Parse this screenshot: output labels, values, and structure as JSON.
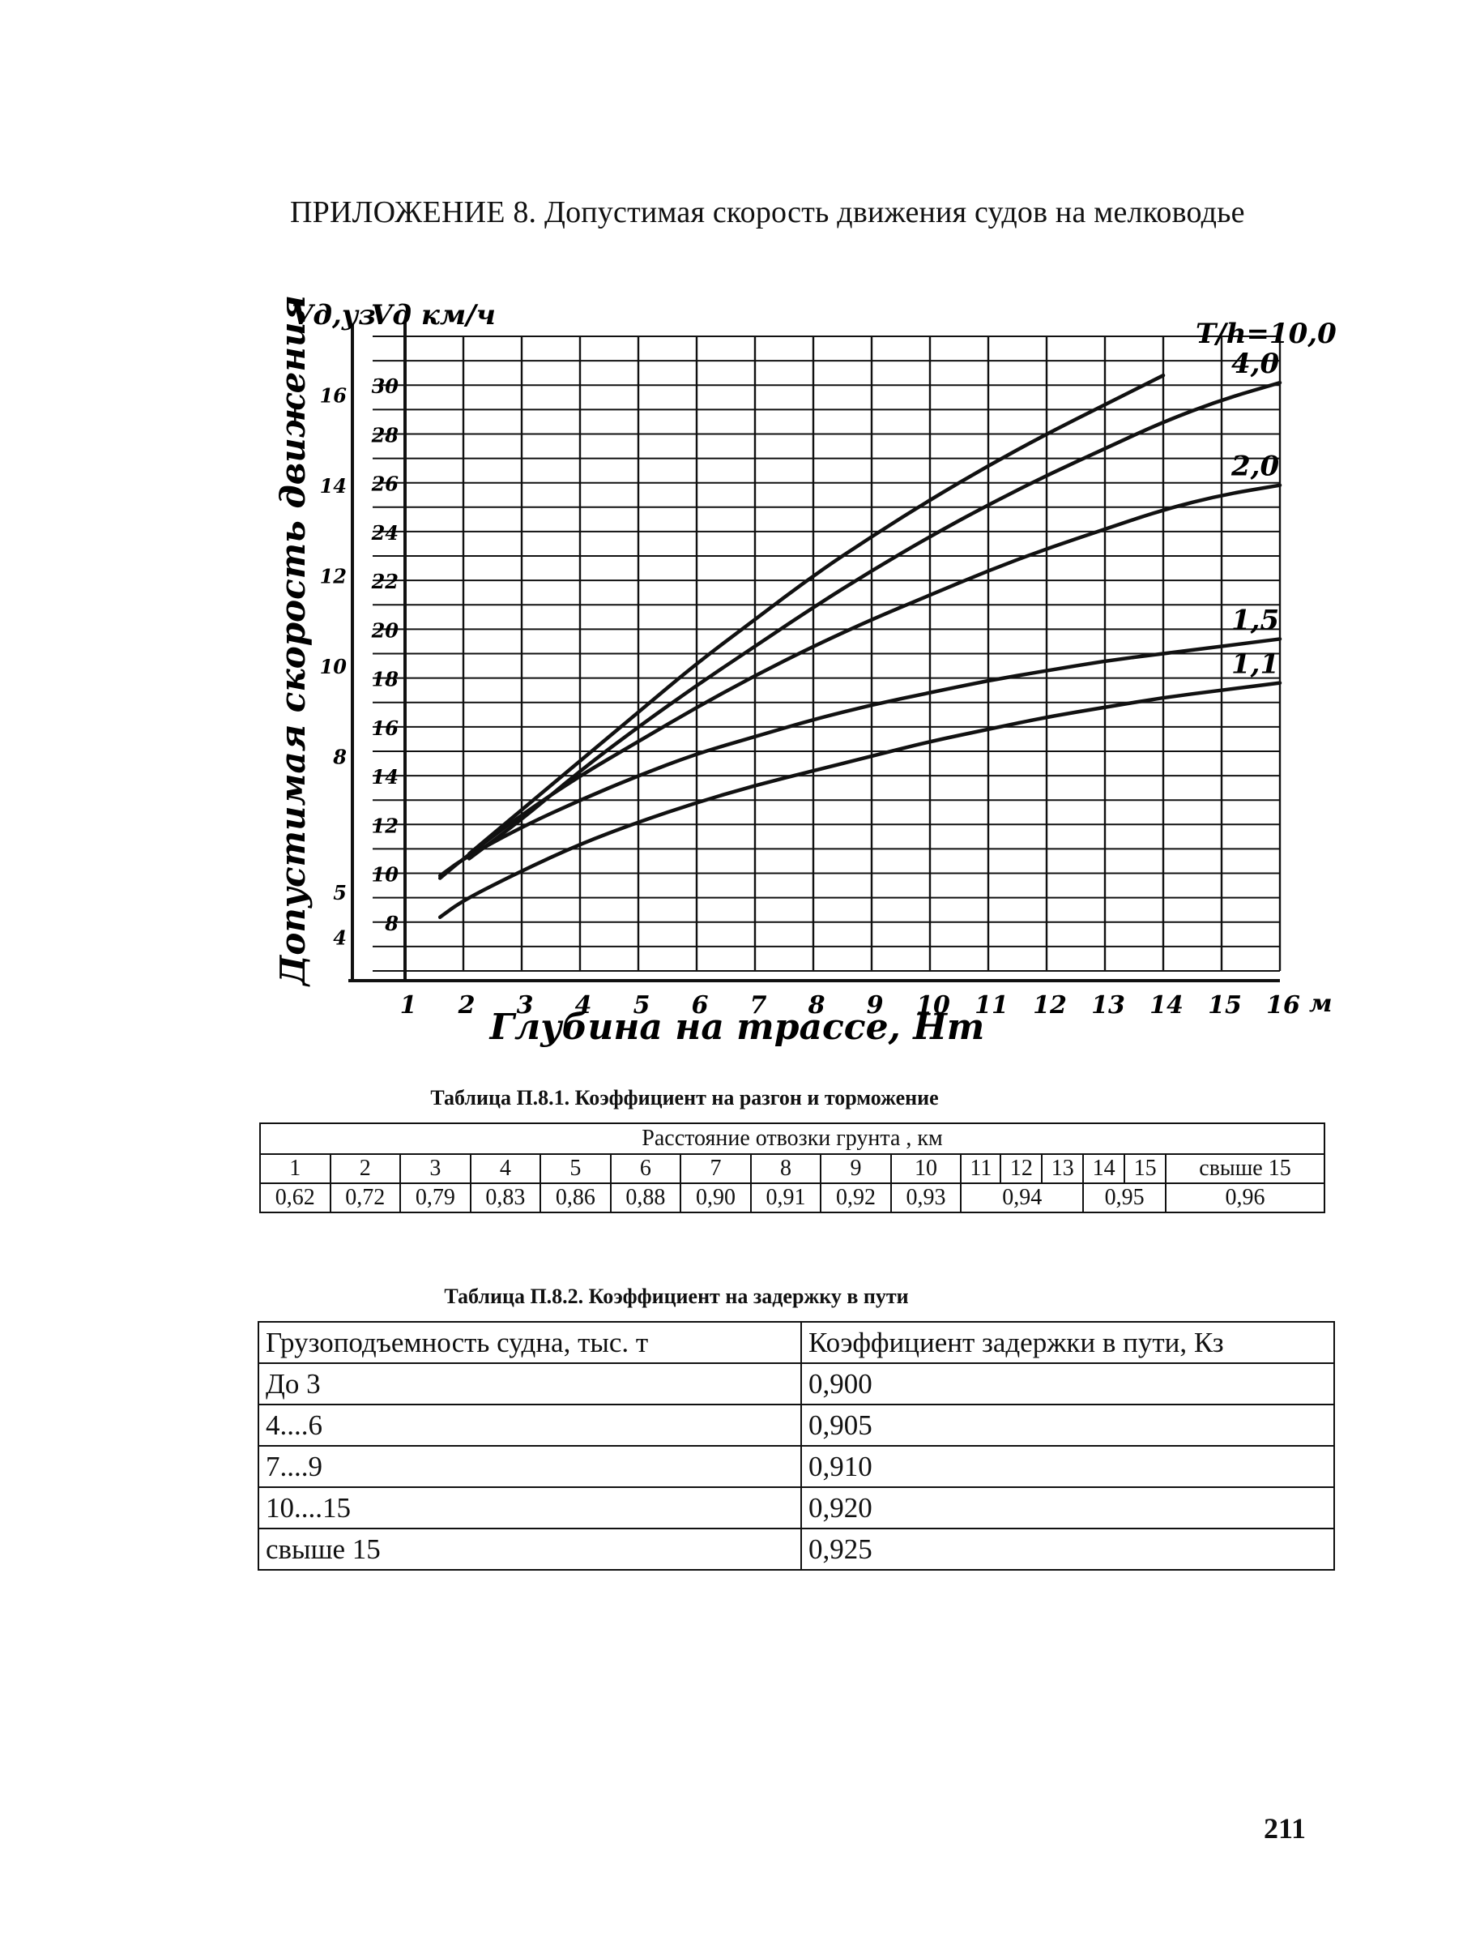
{
  "page": {
    "title": "ПРИЛОЖЕНИЕ 8. Допустимая скорость движения судов на мелководье",
    "page_number": "211"
  },
  "chart_data": {
    "type": "line",
    "xlabel": "Глубина на трассе, Нт",
    "x_unit": "м",
    "ylabel": "Допустимая скорость движения",
    "y_axis_left_label": "Vд,уз",
    "y_axis_right_label": "Vд км/ч",
    "x_ticks": [
      "1",
      "2",
      "3",
      "4",
      "5",
      "6",
      "7",
      "8",
      "9",
      "10",
      "11",
      "12",
      "13",
      "14",
      "15",
      "16"
    ],
    "y_ticks_kmh": [
      "8",
      "10",
      "12",
      "14",
      "16",
      "18",
      "20",
      "22",
      "24",
      "26",
      "28",
      "30"
    ],
    "y_ticks_knots": [
      "4",
      "5",
      "8",
      "10",
      "12",
      "14",
      "16"
    ],
    "xlim": [
      1,
      16
    ],
    "ylim_kmh": [
      6,
      32
    ],
    "grid": true,
    "series": [
      {
        "name": "Т/h=10,0",
        "label": "Т/h=10,0",
        "points": [
          [
            2.1,
            10.8
          ],
          [
            3,
            12.6
          ],
          [
            4,
            14.6
          ],
          [
            5,
            16.6
          ],
          [
            6,
            18.6
          ],
          [
            7,
            20.4
          ],
          [
            8,
            22.2
          ],
          [
            9,
            23.8
          ],
          [
            10,
            25.3
          ],
          [
            11,
            26.7
          ],
          [
            12,
            28
          ],
          [
            13,
            29.2
          ],
          [
            14,
            30.4
          ]
        ]
      },
      {
        "name": "4,0",
        "label": "4,0",
        "points": [
          [
            2.1,
            10.6
          ],
          [
            3,
            12.2
          ],
          [
            4,
            14.2
          ],
          [
            5,
            16
          ],
          [
            6,
            17.7
          ],
          [
            7,
            19.3
          ],
          [
            8,
            20.9
          ],
          [
            9,
            22.4
          ],
          [
            10,
            23.8
          ],
          [
            11,
            25.1
          ],
          [
            12,
            26.3
          ],
          [
            13,
            27.4
          ],
          [
            14,
            28.5
          ],
          [
            15,
            29.4
          ],
          [
            16,
            30.1
          ]
        ]
      },
      {
        "name": "2,0",
        "label": "2,0",
        "points": [
          [
            1.6,
            9.8
          ],
          [
            2,
            10.6
          ],
          [
            3,
            12.4
          ],
          [
            4,
            14
          ],
          [
            5,
            15.4
          ],
          [
            6,
            16.8
          ],
          [
            7,
            18.1
          ],
          [
            8,
            19.3
          ],
          [
            9,
            20.4
          ],
          [
            10,
            21.4
          ],
          [
            11,
            22.4
          ],
          [
            12,
            23.3
          ],
          [
            13,
            24.1
          ],
          [
            14,
            24.9
          ],
          [
            15,
            25.5
          ],
          [
            16,
            25.9
          ]
        ]
      },
      {
        "name": "1,5",
        "label": "1,5",
        "points": [
          [
            1.6,
            9.9
          ],
          [
            2,
            10.6
          ],
          [
            3,
            11.9
          ],
          [
            4,
            13
          ],
          [
            5,
            14
          ],
          [
            6,
            14.9
          ],
          [
            7,
            15.6
          ],
          [
            8,
            16.3
          ],
          [
            9,
            16.9
          ],
          [
            10,
            17.4
          ],
          [
            11,
            17.9
          ],
          [
            12,
            18.3
          ],
          [
            13,
            18.7
          ],
          [
            14,
            19
          ],
          [
            15,
            19.3
          ],
          [
            16,
            19.6
          ]
        ]
      },
      {
        "name": "1,1",
        "label": "1,1",
        "points": [
          [
            1.6,
            8.2
          ],
          [
            2,
            8.9
          ],
          [
            3,
            10.1
          ],
          [
            4,
            11.2
          ],
          [
            5,
            12.1
          ],
          [
            6,
            12.9
          ],
          [
            7,
            13.6
          ],
          [
            8,
            14.2
          ],
          [
            9,
            14.8
          ],
          [
            10,
            15.4
          ],
          [
            11,
            15.9
          ],
          [
            12,
            16.4
          ],
          [
            13,
            16.8
          ],
          [
            14,
            17.2
          ],
          [
            15,
            17.5
          ],
          [
            16,
            17.8
          ]
        ]
      }
    ]
  },
  "table1": {
    "caption": "Таблица П.8.1. Коэффициент на разгон и торможение",
    "header": "Расстояние отвозки грунта , км",
    "distances": [
      "1",
      "2",
      "3",
      "4",
      "5",
      "6",
      "7",
      "8",
      "9",
      "10",
      "11",
      "12",
      "13",
      "14",
      "15",
      "свыше 15"
    ],
    "coefficients": [
      {
        "value": "0,62",
        "span": 1
      },
      {
        "value": "0,72",
        "span": 1
      },
      {
        "value": "0,79",
        "span": 1
      },
      {
        "value": "0,83",
        "span": 1
      },
      {
        "value": "0,86",
        "span": 1
      },
      {
        "value": "0,88",
        "span": 1
      },
      {
        "value": "0,90",
        "span": 1
      },
      {
        "value": "0,91",
        "span": 1
      },
      {
        "value": "0,92",
        "span": 1
      },
      {
        "value": "0,93",
        "span": 1
      },
      {
        "value": "0,94",
        "span": 3
      },
      {
        "value": "0,95",
        "span": 2
      },
      {
        "value": "0,96",
        "span": 1
      }
    ]
  },
  "table2": {
    "caption": "Таблица П.8.2. Коэффициент на задержку в пути",
    "columns": [
      "Грузоподъемность судна, тыс. т",
      "Коэффициент задержки в пути, Кз"
    ],
    "rows": [
      [
        "До 3",
        "0,900"
      ],
      [
        "4....6",
        "0,905"
      ],
      [
        "7....9",
        "0,910"
      ],
      [
        "10....15",
        "0,920"
      ],
      [
        "свыше 15",
        "0,925"
      ]
    ]
  }
}
